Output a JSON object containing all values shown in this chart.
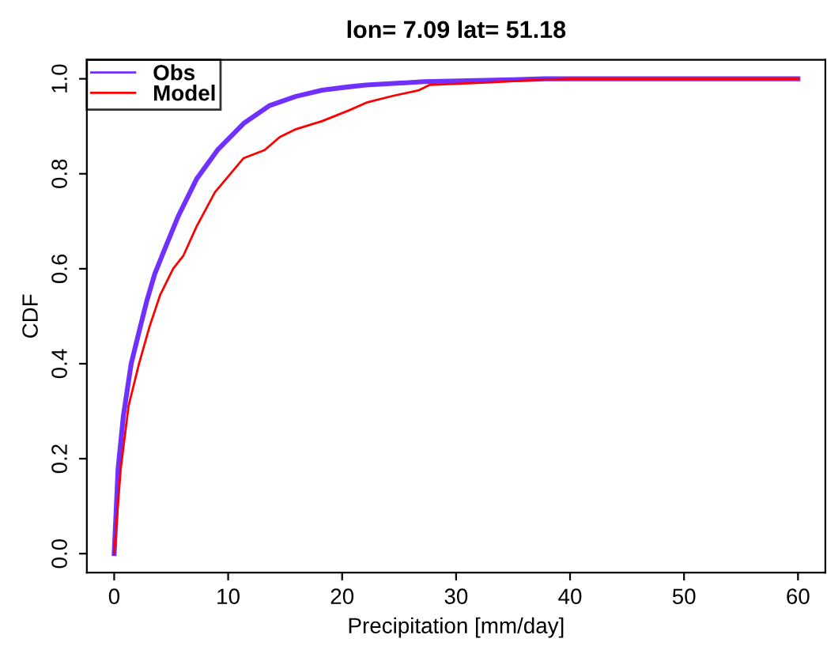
{
  "chart_data": {
    "type": "line",
    "title": "lon= 7.09 lat= 51.18",
    "xlabel": "Precipitation [mm/day]",
    "ylabel": "CDF",
    "xlim": [
      -2.4,
      62.4
    ],
    "ylim": [
      -0.04,
      1.04
    ],
    "xticks": [
      0,
      10,
      20,
      30,
      40,
      50,
      60
    ],
    "yticks": [
      {
        "value": 0,
        "label": "0.0"
      },
      {
        "value": 0.2,
        "label": "0.2"
      },
      {
        "value": 0.4,
        "label": "0.4"
      },
      {
        "value": 0.6,
        "label": "0.6"
      },
      {
        "value": 0.8,
        "label": "0.8"
      },
      {
        "value": 1,
        "label": "1.0"
      }
    ],
    "grid": false,
    "legend": "top left",
    "line_style": "solid",
    "marker": "none",
    "series": [
      {
        "name": "Obs",
        "color": "#7030ff",
        "x": [
          0,
          0.34,
          0.8,
          1.49,
          2.18,
          2.87,
          3.56,
          4.48,
          5.63,
          7.23,
          9.07,
          11.36,
          13.66,
          15.95,
          18.25,
          20.55,
          22.1,
          25.1,
          27.2,
          35.0,
          37.8,
          60
        ],
        "values": [
          0,
          0.178,
          0.289,
          0.4,
          0.467,
          0.533,
          0.589,
          0.644,
          0.711,
          0.789,
          0.85,
          0.906,
          0.944,
          0.963,
          0.976,
          0.983,
          0.987,
          0.991,
          0.994,
          0.998,
          1.0,
          1.0
        ]
      },
      {
        "name": "Model",
        "color": "#ff0000",
        "x": [
          0,
          0.57,
          1.26,
          2.18,
          3.1,
          4.02,
          5.17,
          6.08,
          7.23,
          8.84,
          9.99,
          11.36,
          13.2,
          14.57,
          15.95,
          18.25,
          20.55,
          22.15,
          24.45,
          26.75,
          27.66,
          32.7,
          37.3,
          40,
          60
        ],
        "values": [
          0,
          0.178,
          0.311,
          0.4,
          0.478,
          0.544,
          0.6,
          0.628,
          0.689,
          0.761,
          0.794,
          0.833,
          0.85,
          0.878,
          0.894,
          0.911,
          0.933,
          0.95,
          0.964,
          0.976,
          0.987,
          0.992,
          0.998,
          1.0,
          1.0
        ]
      }
    ]
  }
}
